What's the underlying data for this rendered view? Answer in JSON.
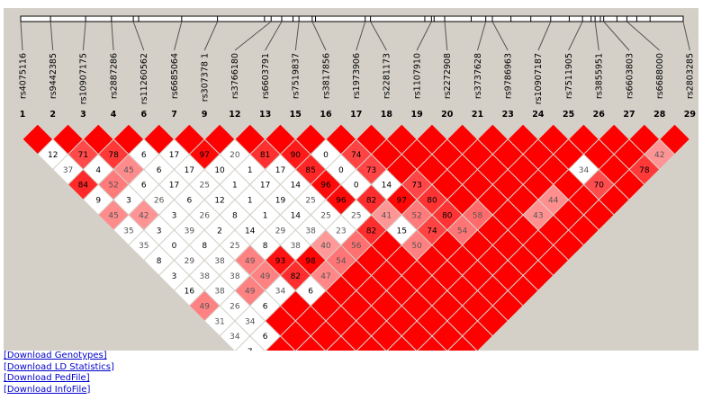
{
  "snps": [
    {
      "index": "1",
      "rsid": "rs4075116"
    },
    {
      "index": "2",
      "rsid": "rs9442385"
    },
    {
      "index": "3",
      "rsid": "rs10907175"
    },
    {
      "index": "4",
      "rsid": "rs2887286"
    },
    {
      "index": "6",
      "rsid": "rs11260562"
    },
    {
      "index": "7",
      "rsid": "rs6685064"
    },
    {
      "index": "9",
      "rsid": "rs307378 1"
    },
    {
      "index": "12",
      "rsid": "rs3766180"
    },
    {
      "index": "13",
      "rsid": "rs6603791"
    },
    {
      "index": "15",
      "rsid": "rs7519837"
    },
    {
      "index": "16",
      "rsid": "rs3817856"
    },
    {
      "index": "17",
      "rsid": "rs1973906"
    },
    {
      "index": "18",
      "rsid": "rs2281173"
    },
    {
      "index": "19",
      "rsid": "rs1107910"
    },
    {
      "index": "20",
      "rsid": "rs2272908"
    },
    {
      "index": "21",
      "rsid": "rs3737628"
    },
    {
      "index": "23",
      "rsid": "rs9786963"
    },
    {
      "index": "24",
      "rsid": "rs10907187"
    },
    {
      "index": "25",
      "rsid": "rs7511905"
    },
    {
      "index": "26",
      "rsid": "rs3855951"
    },
    {
      "index": "27",
      "rsid": "rs6603803"
    },
    {
      "index": "28",
      "rsid": "rs6688000"
    },
    {
      "index": "29",
      "rsid": "rs2803285"
    }
  ],
  "colors": {
    "panel_background": "#d4d0c8",
    "strong_ld": "#ff0000",
    "weak_ld": "#ffffff",
    "uninformative": "#c0c0ee",
    "link": "#0000cc"
  },
  "ld_rows": [
    [
      null,
      null,
      null,
      null,
      null,
      null,
      null,
      null,
      null,
      null,
      null,
      null,
      null,
      null,
      null,
      null,
      null,
      null,
      null,
      null,
      null,
      null
    ],
    [
      "12",
      "71",
      "78",
      "6",
      "17",
      "97",
      "20",
      "81",
      "90",
      "0",
      "74",
      null,
      null,
      null,
      null,
      null,
      null,
      null,
      null,
      null,
      "42"
    ],
    [
      "37",
      "4",
      "45",
      "6",
      "17",
      "10",
      "1",
      "17",
      "85",
      "0",
      "73",
      null,
      null,
      null,
      null,
      null,
      null,
      "34",
      null,
      "78"
    ],
    [
      "84",
      "52",
      "6",
      "17",
      "25",
      "1",
      "17",
      "14",
      "96",
      "0",
      "14",
      "73",
      null,
      null,
      null,
      null,
      null,
      "70"
    ],
    [
      "9",
      "3",
      "26",
      "6",
      "12",
      "1",
      "19",
      "25",
      "96",
      "82",
      "97",
      "80",
      null,
      null,
      null,
      "44"
    ],
    [
      "45",
      "42",
      "3",
      "26",
      "8",
      "1",
      "14",
      "25",
      "25",
      "41",
      "52",
      "80",
      "58",
      null,
      "43"
    ],
    [
      "35",
      "3",
      "39",
      "2",
      "14",
      "29",
      "38",
      "23",
      "82",
      "15",
      "74",
      "54"
    ],
    [
      "35",
      "0",
      "8",
      "25",
      "8",
      "38",
      "40",
      "56",
      null,
      "50"
    ],
    [
      "8",
      "29",
      "38",
      "49",
      "93",
      "98",
      "54"
    ],
    [
      "3",
      "38",
      "38",
      "49",
      "82",
      "47"
    ],
    [
      "16",
      "38",
      "49",
      "34",
      "6"
    ],
    [
      "49",
      "26",
      "6"
    ],
    [
      "31",
      "34"
    ],
    [
      "34",
      "6"
    ],
    [
      "7"
    ]
  ],
  "downloads": {
    "genotypes": "[Download Genotypes]",
    "ld_statistics": "[Download LD Statistics]",
    "pedfile": "[Download PedFile]",
    "infofile": "[Download InfoFile]"
  }
}
